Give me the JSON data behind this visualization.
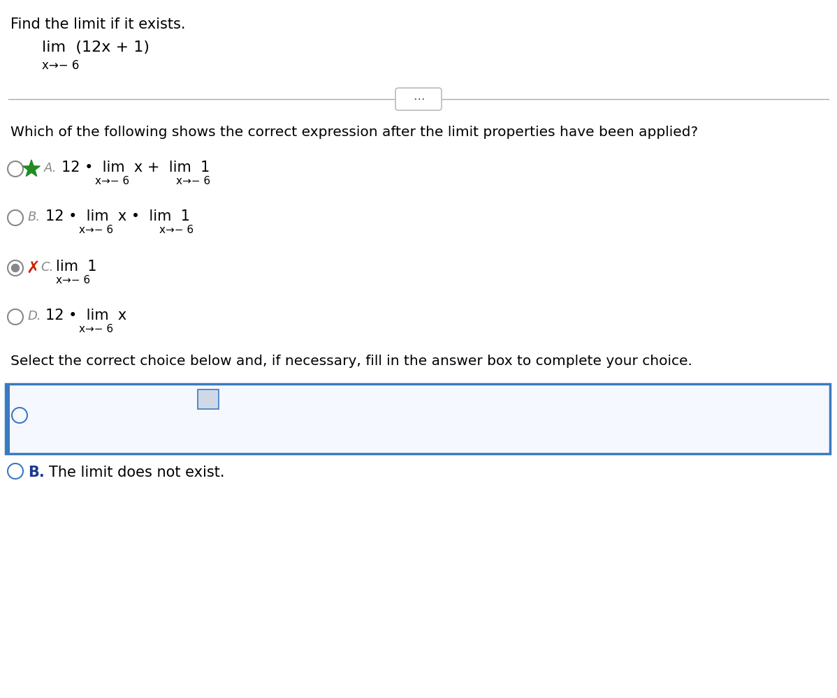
{
  "bg_color": "#ffffff",
  "title_text": "Find the limit if it exists.",
  "question_text": "Which of the following shows the correct expression after the limit properties have been applied?",
  "select_text": "Select the correct choice below and, if necessary, fill in the answer box to complete your choice.",
  "answer_B_text": "The limit does not exist.",
  "box_border_color": "#3a7abf",
  "answer_text_color": "#1a3a8f",
  "radio_outline_color": "#3a7abf",
  "green_color": "#228B22",
  "red_color": "#cc2200",
  "gray_color": "#888888",
  "answer_hint_color": "#1a7a3a"
}
